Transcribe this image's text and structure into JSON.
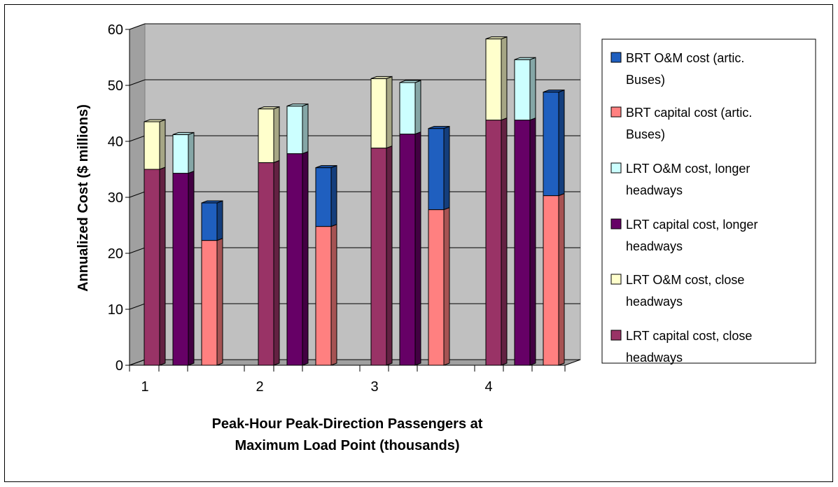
{
  "chart_data": {
    "type": "bar",
    "stacked": true,
    "three_d": true,
    "categories": [
      "1",
      "2",
      "3",
      "4"
    ],
    "xlabel": "Peak-Hour Peak-Direction Passengers at Maximum Load Point (thousands)",
    "xlabel_lines": [
      "Peak-Hour Peak-Direction Passengers at",
      "Maximum Load Point (thousands)"
    ],
    "ylabel": "Annualized Cost ($ millions)",
    "ylim": [
      0,
      60
    ],
    "yticks": [
      "0",
      "10",
      "20",
      "30",
      "40",
      "50",
      "60"
    ],
    "grid": true,
    "legend_position": "right",
    "stacks": [
      {
        "name": "LRT, close headways",
        "segments": [
          {
            "series": "LRT capital cost, close headways",
            "values": [
              35,
              36.2,
              38.8,
              43.8
            ]
          },
          {
            "series": "LRT O&M cost, close headways",
            "values": [
              8.5,
              9.6,
              12.4,
              14.5
            ]
          }
        ]
      },
      {
        "name": "LRT, longer headways",
        "segments": [
          {
            "series": "LRT capital cost, longer headways",
            "values": [
              34.3,
              37.8,
              41.3,
              43.8
            ]
          },
          {
            "series": "LRT O&M cost, longer headways",
            "values": [
              6.9,
              8.5,
              9.2,
              10.8
            ]
          }
        ]
      },
      {
        "name": "BRT (artic. Buses)",
        "segments": [
          {
            "series": "BRT capital cost (artic. Buses)",
            "values": [
              22.3,
              24.8,
              27.8,
              30.3
            ]
          },
          {
            "series": "BRT O&M cost (artic. Buses)",
            "values": [
              6.7,
              10.5,
              14.5,
              18.5
            ]
          }
        ]
      }
    ],
    "legend": [
      {
        "lines": [
          "BRT O&M cost (artic.",
          "Buses)"
        ],
        "color": "#1f5fbf"
      },
      {
        "lines": [
          "BRT capital cost (artic.",
          "Buses)"
        ],
        "color": "#ff8080"
      },
      {
        "lines": [
          "LRT O&M cost, longer",
          "headways"
        ],
        "color": "#ccffff"
      },
      {
        "lines": [
          "LRT capital cost, longer",
          "headways"
        ],
        "color": "#660066"
      },
      {
        "lines": [
          "LRT O&M cost, close",
          "headways"
        ],
        "color": "#ffffcc"
      },
      {
        "lines": [
          "LRT capital cost, close",
          "headways"
        ],
        "color": "#993366"
      }
    ],
    "colors": {
      "LRT capital cost, close headways": "#993366",
      "LRT O&M cost, close headways": "#ffffcc",
      "LRT capital cost, longer headways": "#660066",
      "LRT O&M cost, longer headways": "#ccffff",
      "BRT capital cost (artic. Buses)": "#ff8080",
      "BRT O&M cost (artic. Buses)": "#1f5fbf",
      "plot_wall": "#c0c0c0",
      "floor": "#a0a0a0"
    }
  }
}
